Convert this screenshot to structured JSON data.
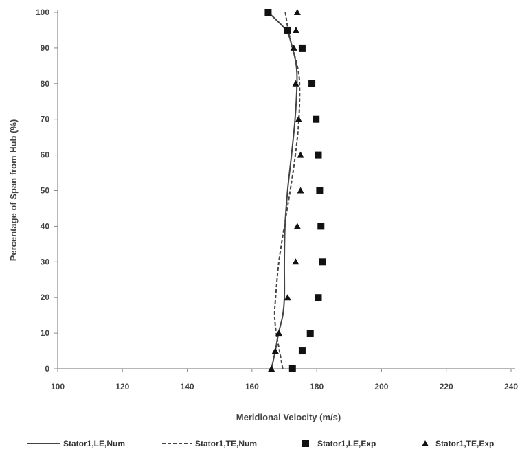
{
  "chart_data": {
    "type": "line",
    "xlabel": "Meridional Velocity (m/s)",
    "ylabel": "Percentage of Span from Hub (%)",
    "xlim": [
      100,
      240
    ],
    "ylim": [
      0,
      100
    ],
    "xticks": [
      "100",
      "120",
      "140",
      "160",
      "180",
      "200",
      "220",
      "240"
    ],
    "yticks": [
      "0",
      "10",
      "20",
      "30",
      "40",
      "50",
      "60",
      "70",
      "80",
      "90",
      "100"
    ],
    "grid": false,
    "legend": "bottom",
    "series": [
      {
        "name": "Stator1,LE,Num",
        "style": "solid-line",
        "color": "#444444",
        "x": [
          166,
          167.2,
          168.2,
          169.5,
          170.0,
          170.0,
          170.2,
          171.0,
          172.2,
          173.3,
          173.9,
          173.7,
          172.5,
          170.5,
          165
        ],
        "y": [
          0,
          5,
          10,
          15,
          20,
          30,
          40,
          50,
          60,
          70,
          80,
          85,
          90,
          95,
          100
        ]
      },
      {
        "name": "Stator1,TE,Num",
        "style": "dashed-line",
        "color": "#444444",
        "x": [
          169.5,
          168.5,
          167.5,
          167.0,
          167.3,
          168.3,
          170.0,
          171.8,
          173.4,
          174.5,
          174.7,
          174.0,
          172.5,
          171.2,
          170.3
        ],
        "y": [
          0,
          5,
          10,
          15,
          20,
          30,
          40,
          50,
          60,
          70,
          80,
          85,
          90,
          95,
          100
        ]
      },
      {
        "name": "Stator1,LE,Exp",
        "style": "square-marker",
        "color": "#111111",
        "x": [
          172.5,
          175.5,
          178.0,
          180.5,
          181.7,
          181.3,
          180.9,
          180.5,
          179.8,
          178.5,
          175.5,
          171.0,
          165.0
        ],
        "y": [
          0,
          5,
          10,
          20,
          30,
          40,
          50,
          60,
          70,
          80,
          90,
          95,
          100
        ]
      },
      {
        "name": "Stator1,TE,Exp",
        "style": "triangle-marker",
        "color": "#111111",
        "x": [
          166.0,
          167.2,
          168.3,
          171.0,
          173.5,
          174.0,
          175.0,
          175.0,
          174.4,
          173.5,
          172.9,
          173.6,
          174.0
        ],
        "y": [
          0,
          5,
          10,
          20,
          30,
          40,
          50,
          60,
          70,
          80,
          90,
          95,
          100
        ]
      }
    ]
  }
}
